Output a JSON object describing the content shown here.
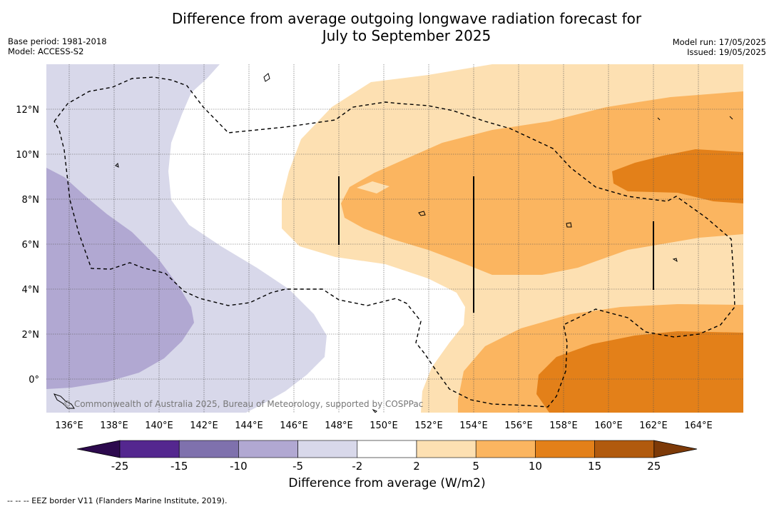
{
  "title_line1": "Difference from average outgoing longwave radiation forecast for",
  "title_line2": "July to September 2025",
  "meta_left": [
    "Base period: 1981-2018",
    "Model: ACCESS-S2"
  ],
  "meta_right": [
    "Model run: 17/05/2025",
    "Issued: 19/05/2025"
  ],
  "copyright": "© Commonwealth of Australia 2025, Bureau of Meteorology, supported by COSPPac",
  "lon_labels": [
    "136°E",
    "138°E",
    "140°E",
    "142°E",
    "144°E",
    "146°E",
    "148°E",
    "150°E",
    "152°E",
    "154°E",
    "156°E",
    "158°E",
    "160°E",
    "162°E",
    "164°E"
  ],
  "lat_labels": [
    "12°N",
    "10°N",
    "8°N",
    "6°N",
    "4°N",
    "2°N",
    "0°"
  ],
  "colorbar": {
    "title": "Difference from average (W/m2)",
    "ticks": [
      "-25",
      "-15",
      "-10",
      "-5",
      "-2",
      "2",
      "5",
      "10",
      "15",
      "25"
    ],
    "colors": {
      "below_min": "#2d0a4e",
      "bins": [
        "#54278f",
        "#7f71ad",
        "#b1a8d2",
        "#d8d8ea",
        "#ffffff",
        "#fde0b2",
        "#fbb560",
        "#e38019",
        "#b15a0e"
      ],
      "above_max": "#7d3a08"
    }
  },
  "footer": "--  --  -- EEZ border V11 (Flanders Marine Institute, 2019)."
}
